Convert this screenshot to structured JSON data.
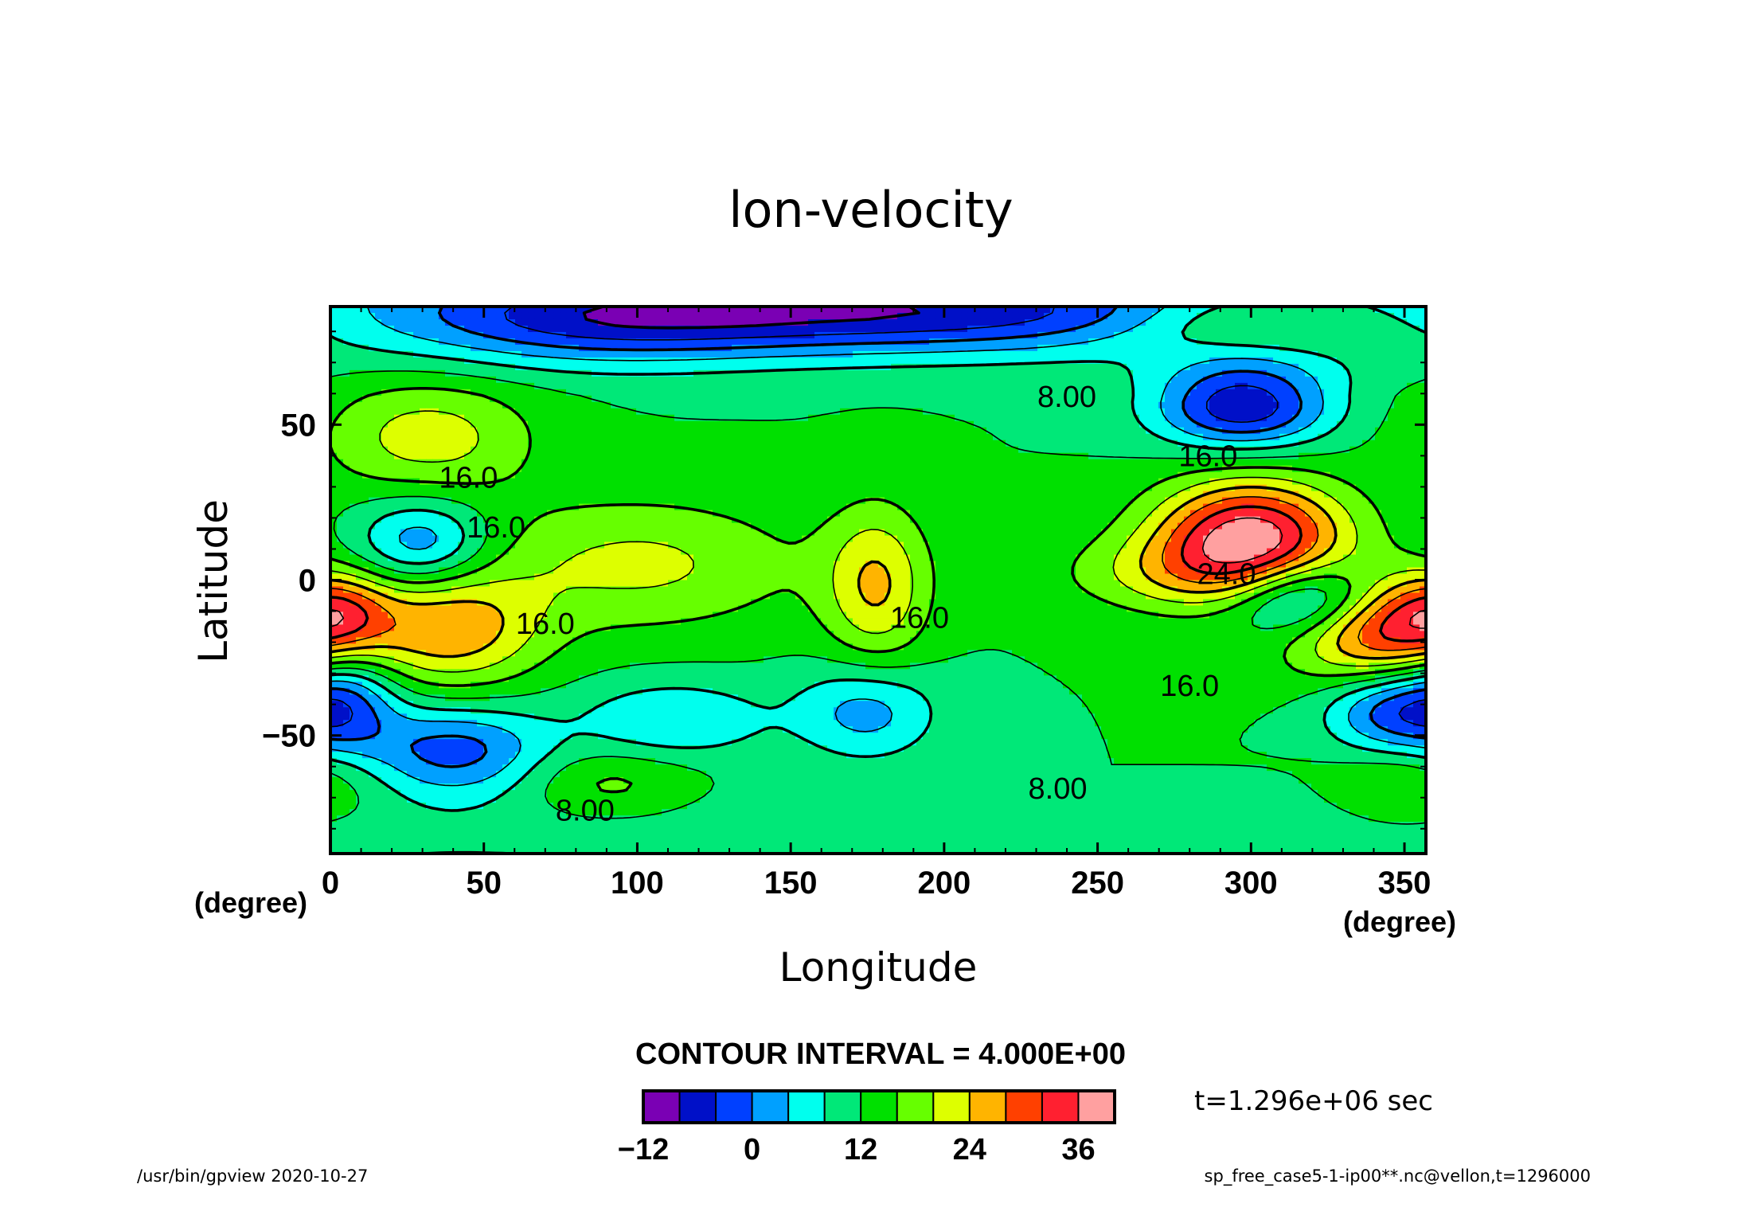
{
  "chart_data": {
    "type": "heatmap",
    "title": "lon-velocity",
    "xlabel": "Longitude",
    "ylabel": "Latitude",
    "x_unit": "(degree)",
    "y_unit": "(degree)",
    "xlim": [
      0,
      357
    ],
    "ylim": [
      -88,
      88
    ],
    "x_ticks": [
      "0",
      "50",
      "100",
      "150",
      "200",
      "250",
      "300",
      "350"
    ],
    "y_ticks": [
      "50",
      "0",
      "−50"
    ],
    "x_tick_values": [
      0,
      50,
      100,
      150,
      200,
      250,
      300,
      350
    ],
    "y_tick_values": [
      50,
      0,
      -50
    ],
    "contour_interval_text": "CONTOUR INTERVAL = 4.000E+00",
    "contour_labels": [
      {
        "text": "8.00",
        "lon": 240,
        "lat": 59
      },
      {
        "text": "16.0",
        "lon": 286,
        "lat": 40
      },
      {
        "text": "16.0",
        "lon": 45,
        "lat": 33
      },
      {
        "text": "16.0",
        "lon": 54,
        "lat": 17
      },
      {
        "text": "24.0",
        "lon": 292,
        "lat": 2
      },
      {
        "text": "16.0",
        "lon": 70,
        "lat": -14
      },
      {
        "text": "16.0",
        "lon": 192,
        "lat": -12
      },
      {
        "text": "16.0",
        "lon": 280,
        "lat": -34
      },
      {
        "text": "8.00",
        "lon": 83,
        "lat": -74
      },
      {
        "text": "8.00",
        "lon": 237,
        "lat": -67
      }
    ],
    "colorbar": {
      "levels": [
        -16,
        -12,
        -8,
        -4,
        0,
        4,
        8,
        12,
        16,
        20,
        24,
        28,
        32,
        36,
        40
      ],
      "colors": [
        "#7a00b4",
        "#0010c8",
        "#0040ff",
        "#00a0ff",
        "#00ffee",
        "#00e878",
        "#00e000",
        "#66ff00",
        "#ddff00",
        "#ffb400",
        "#ff4000",
        "#ff2030",
        "#ffa0a0"
      ],
      "tick_labels": [
        "−12",
        "0",
        "12",
        "24",
        "36"
      ],
      "tick_values": [
        -12,
        0,
        12,
        24,
        36
      ]
    },
    "field_blobs": [
      {
        "lon": 297,
        "lat": 55,
        "amp": -18,
        "slon": 20,
        "slat": 9
      },
      {
        "lon": 180,
        "lat": 86,
        "amp": -16,
        "slon": 90,
        "slat": 9
      },
      {
        "lon": 300,
        "lat": 72,
        "amp": -6,
        "slon": 24,
        "slat": 9
      },
      {
        "lon": 300,
        "lat": 14,
        "amp": 26,
        "slon": 22,
        "slat": 13
      },
      {
        "lon": 278,
        "lat": 2,
        "amp": 8,
        "slon": 28,
        "slat": 9
      },
      {
        "lon": 343,
        "lat": -16,
        "amp": 22,
        "slon": 22,
        "slat": 12
      },
      {
        "lon": 318,
        "lat": -6,
        "amp": -18,
        "slon": 17,
        "slat": 9
      },
      {
        "lon": 345,
        "lat": -42,
        "amp": -14,
        "slon": 15,
        "slat": 10
      },
      {
        "lon": 178,
        "lat": -2,
        "amp": 12,
        "slon": 12,
        "slat": 18
      },
      {
        "lon": 40,
        "lat": -16,
        "amp": 14,
        "slon": 20,
        "slat": 13
      },
      {
        "lon": 3,
        "lat": -10,
        "amp": 10,
        "slon": 12,
        "slat": 9
      },
      {
        "lon": 30,
        "lat": 12,
        "amp": -12,
        "slon": 15,
        "slat": 10
      },
      {
        "lon": 32,
        "lat": 46,
        "amp": 10,
        "slon": 24,
        "slat": 13
      },
      {
        "lon": 100,
        "lat": 5,
        "amp": 9,
        "slon": 38,
        "slat": 15
      },
      {
        "lon": 40,
        "lat": -55,
        "amp": -14,
        "slon": 22,
        "slat": 10
      },
      {
        "lon": 5,
        "lat": -38,
        "amp": -12,
        "slon": 12,
        "slat": 12
      },
      {
        "lon": 175,
        "lat": -42,
        "amp": -10,
        "slon": 16,
        "slat": 11
      },
      {
        "lon": 112,
        "lat": -45,
        "amp": -8,
        "slon": 22,
        "slat": 9
      },
      {
        "lon": 90,
        "lat": -66,
        "amp": 6,
        "slon": 20,
        "slat": 8
      },
      {
        "lon": 300,
        "lat": 82,
        "amp": 12,
        "slon": 30,
        "slat": 8
      },
      {
        "lon": 352,
        "lat": -66,
        "amp": 6,
        "slon": 18,
        "slat": 10
      },
      {
        "lon": 85,
        "lat": 82,
        "amp": -8,
        "slon": 45,
        "slat": 10
      }
    ],
    "dashed_negative_contours": true
  },
  "annotations": {
    "time_label": "t=1.296e+06 sec",
    "footer_left": "/usr/bin/gpview   2020-10-27",
    "footer_right": "sp_free_case5-1-ip00**.nc@vellon,t=1296000"
  }
}
